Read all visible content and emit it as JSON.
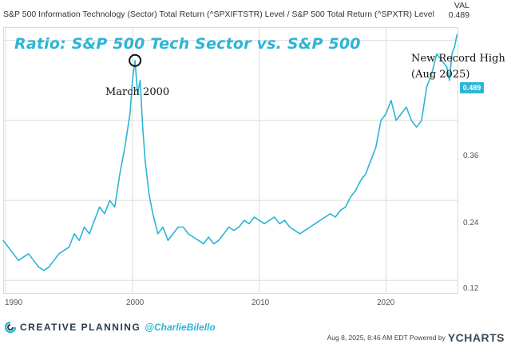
{
  "header": {
    "series_label": "S&P 500 Information Technology (Sector) Total Return (^SPXIFTSTR) Level / S&P 500 Total Return (^SPXTR) Level",
    "val_label": "VAL",
    "val_number": "0.489"
  },
  "overlay": {
    "title": "Ratio: S&P 500 Tech Sector vs. S&P 500",
    "annotation_peak": "March 2000",
    "annotation_record_line1": "New Record High",
    "annotation_record_line2": "(Aug 2025)",
    "current_value_tag": "0.489"
  },
  "footer": {
    "brand": "CREATIVE PLANNING",
    "handle": "@CharlieBilello",
    "timestamp": "Aug 8, 2025, 8:46 AM EDT Powered by",
    "provider": "YCHARTS"
  },
  "colors": {
    "line": "#2bb5d6",
    "grid": "#dcdcdc"
  },
  "chart_data": {
    "type": "line",
    "x_tick_labels": [
      "1990",
      "2000",
      "2010",
      "2020"
    ],
    "y_tick_labels": [
      "0.12",
      "0.24",
      "0.36"
    ],
    "xlim": [
      1989.8,
      2025.7
    ],
    "ylim": [
      0.1,
      0.5
    ],
    "grid": true,
    "series": [
      {
        "x": [
          1989.8,
          1990.2,
          1990.6,
          1991.0,
          1991.4,
          1991.8,
          1992.2,
          1992.6,
          1993.0,
          1993.4,
          1993.8,
          1994.2,
          1994.6,
          1995.0,
          1995.4,
          1995.8,
          1996.2,
          1996.6,
          1997.0,
          1997.4,
          1997.8,
          1998.2,
          1998.6,
          1999.0,
          1999.4,
          1999.8,
          2000.0,
          2000.2,
          2000.4,
          2000.6,
          2000.8,
          2001.0,
          2001.3,
          2001.6,
          2002.0,
          2002.4,
          2002.8,
          2003.2,
          2003.6,
          2004.0,
          2004.4,
          2004.8,
          2005.2,
          2005.6,
          2006.0,
          2006.4,
          2006.8,
          2007.2,
          2007.6,
          2008.0,
          2008.4,
          2008.8,
          2009.2,
          2009.6,
          2010.0,
          2010.4,
          2010.8,
          2011.2,
          2011.6,
          2012.0,
          2012.4,
          2012.8,
          2013.2,
          2013.6,
          2014.0,
          2014.4,
          2014.8,
          2015.2,
          2015.6,
          2016.0,
          2016.4,
          2016.8,
          2017.2,
          2017.6,
          2018.0,
          2018.4,
          2018.8,
          2019.2,
          2019.6,
          2020.0,
          2020.4,
          2020.8,
          2021.2,
          2021.6,
          2022.0,
          2022.4,
          2022.8,
          2023.2,
          2023.6,
          2024.0,
          2024.4,
          2024.8,
          2025.0,
          2025.2,
          2025.4,
          2025.6
        ],
        "y": [
          0.18,
          0.17,
          0.16,
          0.15,
          0.155,
          0.16,
          0.15,
          0.14,
          0.135,
          0.14,
          0.15,
          0.16,
          0.165,
          0.17,
          0.19,
          0.18,
          0.2,
          0.19,
          0.21,
          0.23,
          0.22,
          0.24,
          0.23,
          0.28,
          0.32,
          0.37,
          0.42,
          0.45,
          0.4,
          0.42,
          0.35,
          0.3,
          0.25,
          0.22,
          0.19,
          0.2,
          0.18,
          0.19,
          0.2,
          0.2,
          0.19,
          0.185,
          0.18,
          0.175,
          0.185,
          0.175,
          0.18,
          0.19,
          0.2,
          0.195,
          0.2,
          0.21,
          0.205,
          0.215,
          0.21,
          0.205,
          0.21,
          0.215,
          0.205,
          0.21,
          0.2,
          0.195,
          0.19,
          0.195,
          0.2,
          0.205,
          0.21,
          0.215,
          0.22,
          0.215,
          0.225,
          0.23,
          0.245,
          0.255,
          0.27,
          0.28,
          0.3,
          0.32,
          0.36,
          0.37,
          0.39,
          0.36,
          0.37,
          0.38,
          0.36,
          0.35,
          0.36,
          0.41,
          0.43,
          0.46,
          0.45,
          0.44,
          0.42,
          0.46,
          0.47,
          0.489
        ]
      }
    ]
  }
}
